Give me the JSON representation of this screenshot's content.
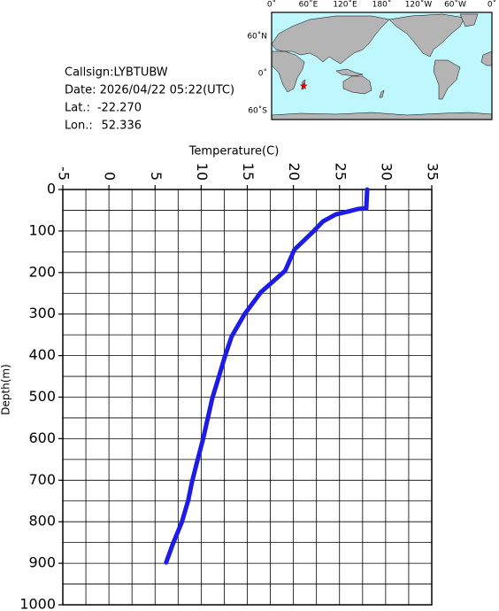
{
  "station": {
    "callsign": "Callsign:LYBTUBW",
    "date": "Date:  2026/04/22 05:22(UTC)",
    "lat": {
      "label": "Lat.:",
      "value": "-22.270"
    },
    "lon": {
      "label": "Lon.:",
      "value": "52.336"
    }
  },
  "map": {
    "x_labels": [
      "0˚",
      "60˚E",
      "120˚E",
      "180˚",
      "120˚W",
      "60˚W",
      "0˚"
    ],
    "y_labels": [
      "60˚N",
      "0˚",
      "60˚S"
    ]
  },
  "chart_data": {
    "type": "line",
    "xlabel": "Temperature(C)",
    "ylabel": "Depth(m)",
    "xlim": [
      -5,
      35
    ],
    "xticks": [
      -5,
      0,
      5,
      10,
      15,
      20,
      25,
      30,
      35
    ],
    "ylim": [
      0,
      1000
    ],
    "yticks": [
      0,
      100,
      200,
      300,
      400,
      500,
      600,
      700,
      800,
      900,
      1000
    ],
    "xgrid": [
      -5,
      -2.5,
      0,
      2.5,
      5,
      7.5,
      10,
      12.5,
      15,
      17.5,
      20,
      22.5,
      25,
      27.5,
      30,
      32.5,
      35
    ],
    "ygrid": [
      0,
      50,
      100,
      150,
      200,
      250,
      300,
      350,
      400,
      450,
      500,
      550,
      600,
      650,
      700,
      750,
      800,
      850,
      900,
      950,
      1000
    ],
    "y_inverted": true,
    "color": "#1c1ce6",
    "x": [
      28.0,
      27.9,
      27.0,
      26.1,
      24.6,
      23.2,
      22.2,
      20.1,
      19.1,
      16.5,
      14.7,
      13.3,
      12.6,
      11.9,
      11.2,
      10.2,
      9.6,
      9.0,
      8.6,
      7.9,
      6.9,
      6.2
    ],
    "values": [
      0,
      45,
      47,
      52,
      60,
      77,
      100,
      145,
      196,
      247,
      300,
      354,
      400,
      452,
      503,
      601,
      652,
      705,
      748,
      801,
      855,
      898
    ]
  }
}
